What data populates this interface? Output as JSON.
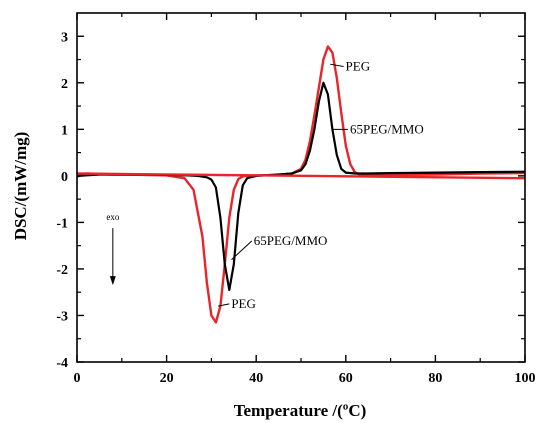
{
  "chart_data": {
    "type": "line",
    "xlabel": "Temperature /(ºC)",
    "ylabel": "DSC/(mW/mg)",
    "xlim": [
      0,
      100
    ],
    "ylim": [
      -4,
      3.5
    ],
    "x_ticks": [
      0,
      20,
      40,
      60,
      80,
      100
    ],
    "y_ticks": [
      -4,
      -3,
      -2,
      -1,
      0,
      1,
      2,
      3
    ],
    "grid": false,
    "legend": "none",
    "series": [
      {
        "color": "#e8262a",
        "x": [
          0,
          2,
          8,
          15,
          20,
          24,
          26,
          28,
          29,
          30,
          31,
          32,
          33,
          34,
          35,
          36,
          37,
          38,
          40,
          45,
          48,
          50,
          51,
          52,
          53,
          54,
          55,
          56,
          57,
          58,
          59,
          60,
          61,
          62,
          63,
          65,
          70,
          80,
          90,
          100
        ],
        "y": [
          -0.02,
          0.05,
          0.03,
          0.02,
          0.01,
          -0.05,
          -0.3,
          -1.3,
          -2.3,
          -3.0,
          -3.15,
          -2.8,
          -1.9,
          -0.9,
          -0.3,
          -0.07,
          -0.01,
          0.0,
          0.01,
          0.02,
          0.05,
          0.15,
          0.35,
          0.75,
          1.3,
          1.9,
          2.5,
          2.78,
          2.65,
          2.1,
          1.35,
          0.65,
          0.25,
          0.08,
          0.03,
          0.02,
          0.02,
          0.03,
          0.05,
          0.06
        ]
      },
      {
        "color": "#000000",
        "x": [
          0,
          5,
          15,
          20,
          25,
          27,
          29,
          30,
          31,
          32,
          33,
          34,
          35,
          36,
          37,
          38,
          40,
          45,
          48,
          50,
          51,
          52,
          53,
          54,
          55,
          56,
          57,
          58,
          59,
          60,
          62,
          65,
          70,
          80,
          90,
          100
        ],
        "y": [
          0.0,
          0.03,
          0.03,
          0.02,
          0.01,
          0.0,
          -0.03,
          -0.08,
          -0.25,
          -0.9,
          -1.9,
          -2.45,
          -1.9,
          -0.8,
          -0.2,
          -0.05,
          0.0,
          0.03,
          0.05,
          0.12,
          0.25,
          0.55,
          1.0,
          1.6,
          2.0,
          1.75,
          1.0,
          0.45,
          0.15,
          0.07,
          0.05,
          0.05,
          0.06,
          0.07,
          0.08,
          0.09
        ]
      },
      {
        "color": "#e8262a",
        "x": [
          0,
          100
        ],
        "y": [
          0.05,
          -0.05
        ]
      }
    ],
    "annotations": [
      {
        "text": "PEG",
        "at": [
          56.5,
          2.4
        ],
        "label_at": [
          59.5,
          2.35
        ]
      },
      {
        "text": "65PEG/MMO",
        "at": [
          57,
          1.0
        ],
        "label_at": [
          60.5,
          1.0
        ]
      },
      {
        "text": "65PEG/MMO",
        "at": [
          34.5,
          -1.8
        ],
        "label_at": [
          39,
          -1.4
        ]
      },
      {
        "text": "PEG",
        "at": [
          31.5,
          -2.8
        ],
        "label_at": [
          34,
          -2.75
        ]
      },
      {
        "text": "exo",
        "at": [
          8,
          -0.95
        ]
      }
    ]
  }
}
